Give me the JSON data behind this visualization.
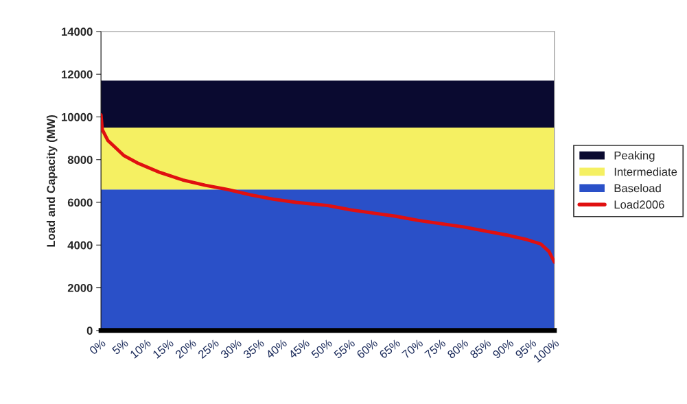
{
  "chart_data": {
    "type": "area",
    "ylabel": "Load and Capacity (MW)",
    "stacked": true,
    "legend": "right",
    "grid": false,
    "xlim": [
      0,
      100
    ],
    "xticks": [
      {
        "value": 0,
        "label": "0%"
      },
      {
        "value": 5,
        "label": "5%"
      },
      {
        "value": 10,
        "label": "10%"
      },
      {
        "value": 15,
        "label": "15%"
      },
      {
        "value": 20,
        "label": "20%"
      },
      {
        "value": 25,
        "label": "25%"
      },
      {
        "value": 30,
        "label": "30%"
      },
      {
        "value": 35,
        "label": "35%"
      },
      {
        "value": 40,
        "label": "40%"
      },
      {
        "value": 45,
        "label": "45%"
      },
      {
        "value": 50,
        "label": "50%"
      },
      {
        "value": 55,
        "label": "55%"
      },
      {
        "value": 60,
        "label": "60%"
      },
      {
        "value": 65,
        "label": "65%"
      },
      {
        "value": 70,
        "label": "70%"
      },
      {
        "value": 75,
        "label": "75%"
      },
      {
        "value": 80,
        "label": "80%"
      },
      {
        "value": 85,
        "label": "85%"
      },
      {
        "value": 90,
        "label": "90%"
      },
      {
        "value": 95,
        "label": "95%"
      },
      {
        "value": 100,
        "label": "100%"
      }
    ],
    "ylim": [
      0,
      14000
    ],
    "yticks": [
      0,
      2000,
      4000,
      6000,
      8000,
      10000,
      12000,
      14000
    ],
    "x": [
      0,
      100
    ],
    "series": [
      {
        "name": "Baseload",
        "color": "#2a50c8",
        "values": [
          6600,
          6600
        ]
      },
      {
        "name": "Intermediate",
        "color": "#f5f062",
        "values": [
          2900,
          2900
        ]
      },
      {
        "name": "Peaking",
        "color": "#0a0a30",
        "values": [
          2200,
          2200
        ]
      },
      {
        "name": "Load2006",
        "type": "line",
        "color": "#e01010",
        "x": [
          0,
          0.3,
          1.5,
          3,
          5,
          8,
          13,
          18,
          23,
          28,
          33,
          38,
          43,
          50,
          55,
          60,
          65,
          70,
          75,
          80,
          85,
          90,
          94,
          97,
          98.8,
          100
        ],
        "values": [
          10100,
          9400,
          8900,
          8600,
          8200,
          7850,
          7400,
          7050,
          6800,
          6600,
          6350,
          6150,
          6000,
          5850,
          5650,
          5500,
          5350,
          5150,
          5000,
          4850,
          4650,
          4450,
          4250,
          4050,
          3700,
          3200
        ]
      }
    ]
  }
}
